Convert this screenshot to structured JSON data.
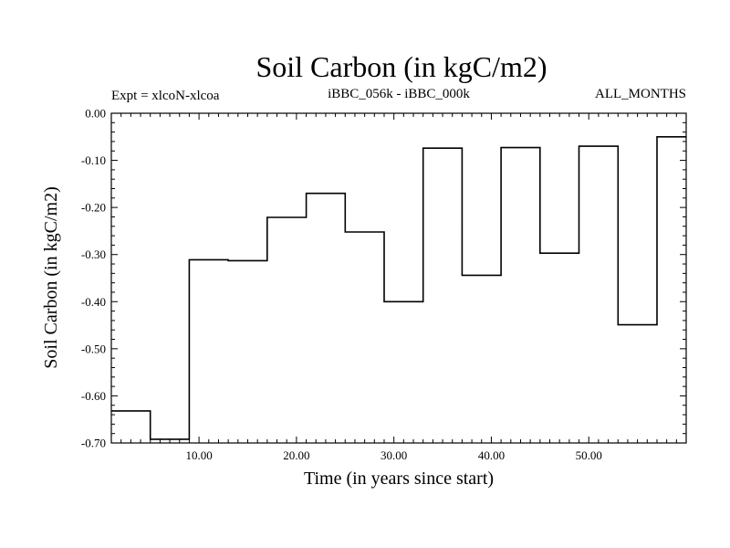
{
  "chart_data": {
    "type": "line",
    "title": "Soil Carbon (in kgC/m2)",
    "left_label": "Expt = xlcoN-xlcoa",
    "center_label": "iBBC_056k - iBBC_000k",
    "right_label": "ALL_MONTHS",
    "xlabel": "Time (in years since start)",
    "ylabel": "Soil Carbon (in kgC/m2)",
    "xlim": [
      1,
      60
    ],
    "ylim": [
      -0.7,
      0.0
    ],
    "x_ticks": [
      10,
      20,
      30,
      40,
      50
    ],
    "x_tick_labels": [
      "10.00",
      "20.00",
      "30.00",
      "40.00",
      "50.00"
    ],
    "y_ticks": [
      0.0,
      -0.1,
      -0.2,
      -0.3,
      -0.4,
      -0.5,
      -0.6,
      -0.7
    ],
    "y_tick_labels": [
      "0.00",
      "-0.10",
      "-0.20",
      "-0.30",
      "-0.40",
      "-0.50",
      "-0.60",
      "-0.70"
    ],
    "grid": false,
    "step": true,
    "series": [
      {
        "x": [
          1,
          5,
          9,
          13,
          17,
          21,
          25,
          29,
          33,
          37,
          41,
          45,
          49,
          53,
          57,
          60
        ],
        "values": [
          -0.632,
          -0.692,
          -0.311,
          -0.313,
          -0.221,
          -0.17,
          -0.252,
          -0.4,
          -0.074,
          -0.344,
          -0.073,
          -0.297,
          -0.07,
          -0.449,
          -0.05,
          -0.05
        ]
      }
    ]
  }
}
